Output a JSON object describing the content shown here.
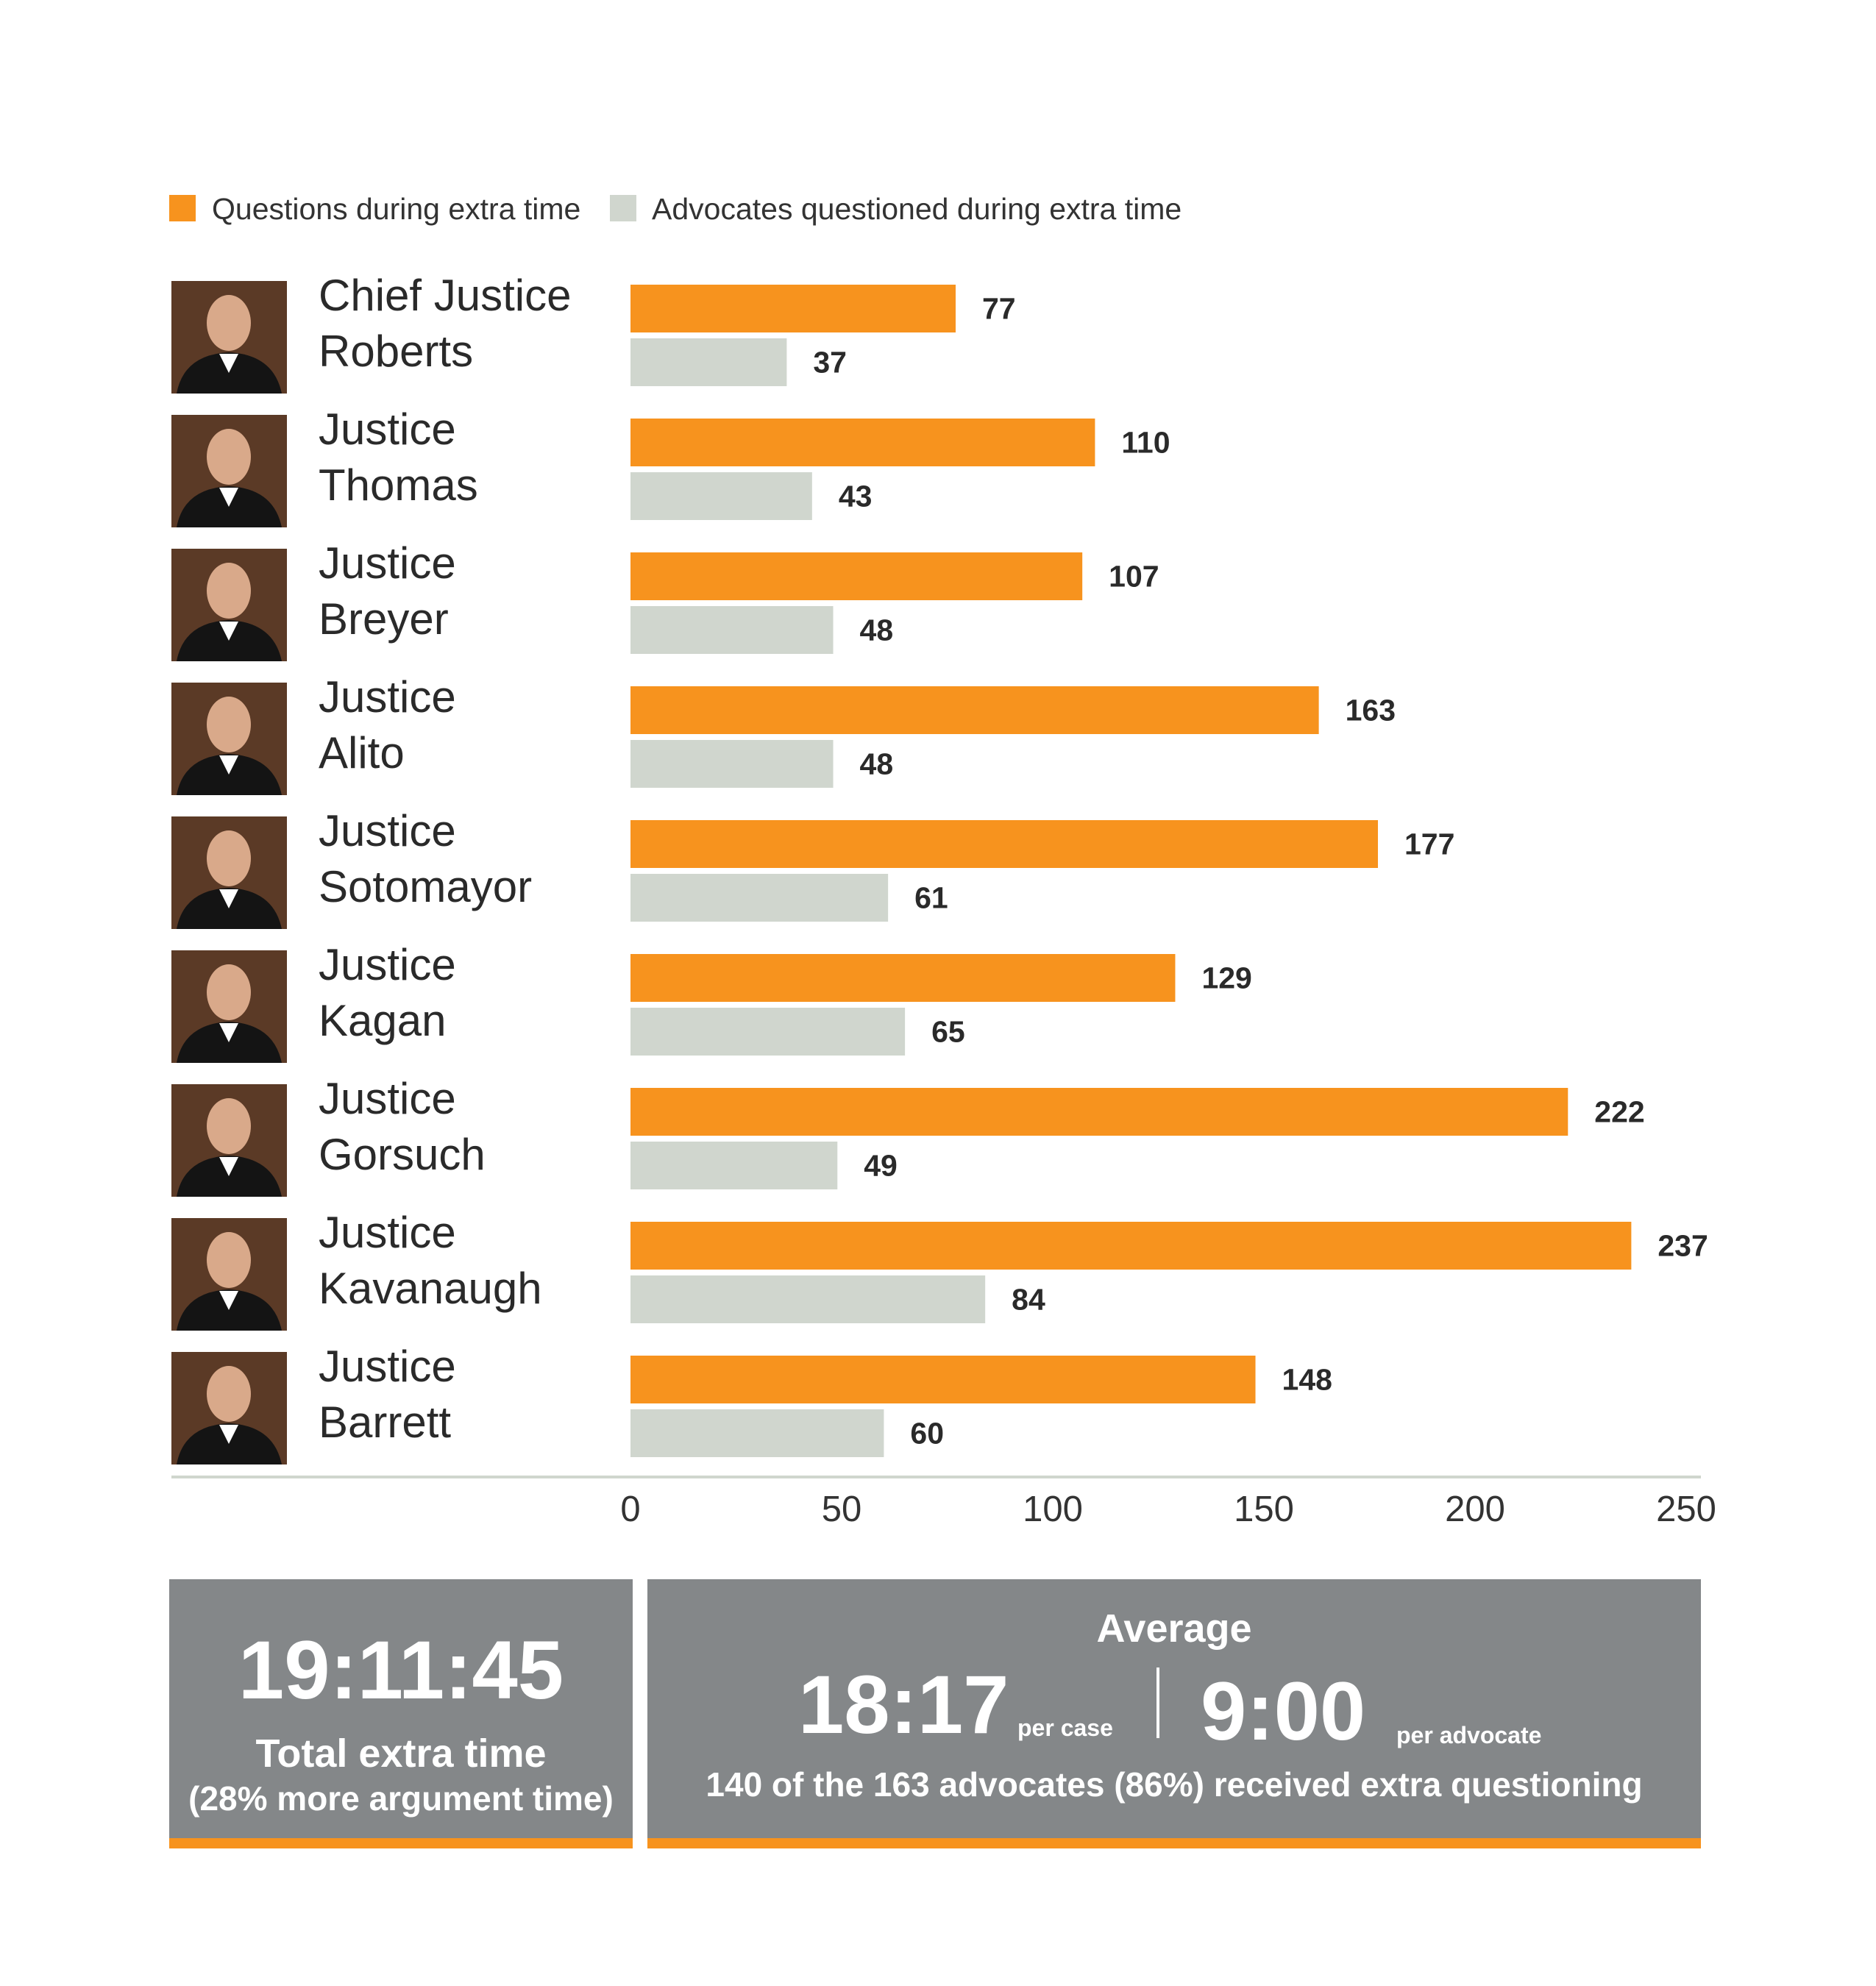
{
  "legend": {
    "questions_label": "Questions during extra time",
    "advocates_label": "Advocates questioned during extra time"
  },
  "colors": {
    "questions": "#f7931e",
    "advocates": "#d0d6ce",
    "box_bg": "#848789",
    "box_accent": "#f7931e"
  },
  "chart_data": {
    "type": "bar",
    "orientation": "horizontal",
    "categories": [
      "Chief Justice Roberts",
      "Justice Thomas",
      "Justice Breyer",
      "Justice Alito",
      "Justice Sotomayor",
      "Justice Kagan",
      "Justice Gorsuch",
      "Justice Kavanaugh",
      "Justice Barrett"
    ],
    "category_lines": [
      [
        "Chief Justice",
        "Roberts"
      ],
      [
        "Justice",
        "Thomas"
      ],
      [
        "Justice",
        "Breyer"
      ],
      [
        "Justice",
        "Alito"
      ],
      [
        "Justice",
        "Sotomayor"
      ],
      [
        "Justice",
        "Kagan"
      ],
      [
        "Justice",
        "Gorsuch"
      ],
      [
        "Justice",
        "Kavanaugh"
      ],
      [
        "Justice",
        "Barrett"
      ]
    ],
    "series": [
      {
        "name": "Questions during extra time",
        "values": [
          77,
          110,
          107,
          163,
          177,
          129,
          222,
          237,
          148
        ]
      },
      {
        "name": "Advocates questioned during extra time",
        "values": [
          37,
          43,
          48,
          48,
          61,
          65,
          49,
          84,
          60
        ]
      }
    ],
    "xlim": [
      0,
      250
    ],
    "xticks": [
      "0",
      "50",
      "100",
      "150",
      "200",
      "250"
    ],
    "legend_position": "top-left",
    "grid": false
  },
  "summary": {
    "total_time": "19:11:45",
    "total_label": "Total extra time",
    "total_sub": "(28% more argument time)",
    "average_title": "Average",
    "per_case_value": "18:17",
    "per_case_label": "per case",
    "per_advocate_value": "9:00",
    "per_advocate_label": "per advocate",
    "footnote": "140 of the 163 advocates (86%) received extra questioning"
  }
}
